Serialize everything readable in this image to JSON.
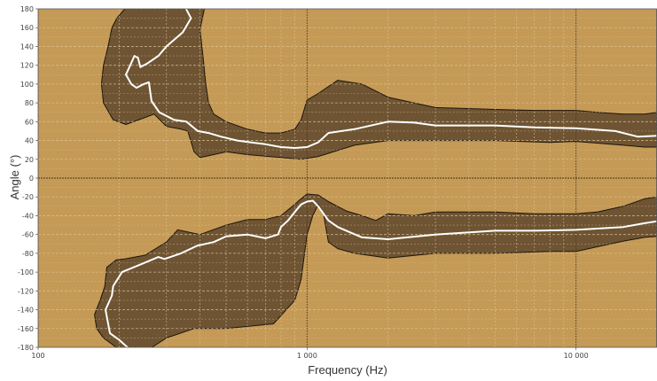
{
  "chart_data": {
    "type": "area",
    "title": "",
    "xlabel": "Frequency (Hz)",
    "ylabel": "Angle (°)",
    "xscale": "log",
    "xlim": [
      100,
      20000
    ],
    "ylim": [
      -180,
      180
    ],
    "grid": true,
    "x_ticks": [
      100,
      1000,
      10000
    ],
    "x_tick_labels": [
      "100",
      "1 000",
      "10 000"
    ],
    "y_ticks": [
      -180,
      -160,
      -140,
      -120,
      -100,
      -80,
      -60,
      -40,
      -20,
      0,
      20,
      40,
      60,
      80,
      100,
      120,
      140,
      160,
      180
    ],
    "y_tick_labels": [
      "-180",
      "-160",
      "-140",
      "-120",
      "-100",
      "-80",
      "-60",
      "-40",
      "-20",
      "0",
      "20",
      "40",
      "60",
      "80",
      "100",
      "120",
      "140",
      "160",
      "180"
    ],
    "colors": {
      "background": "#c49a56",
      "outer_band": "#6e5433",
      "inner_line": "#ffffff",
      "outline": "#1e160c",
      "grid": "#e0c596"
    },
    "upper_region": {
      "band_outer": [
        [
          210,
          180
        ],
        [
          196,
          170
        ],
        [
          188,
          160
        ],
        [
          182,
          140
        ],
        [
          175,
          120
        ],
        [
          172,
          100
        ],
        [
          175,
          80
        ],
        [
          190,
          62
        ],
        [
          212,
          57
        ],
        [
          247,
          64
        ],
        [
          270,
          68
        ],
        [
          300,
          55
        ],
        [
          340,
          52
        ],
        [
          360,
          50
        ],
        [
          380,
          28
        ],
        [
          400,
          22
        ],
        [
          450,
          25
        ],
        [
          500,
          28
        ],
        [
          600,
          25
        ],
        [
          800,
          22
        ],
        [
          950,
          20
        ],
        [
          1100,
          23
        ],
        [
          1500,
          35
        ],
        [
          2000,
          40
        ],
        [
          3000,
          40
        ],
        [
          5000,
          40
        ],
        [
          8000,
          38
        ],
        [
          10000,
          39
        ],
        [
          15000,
          35
        ],
        [
          18000,
          33
        ],
        [
          20000,
          33
        ]
      ],
      "band_inner": [
        [
          20000,
          70
        ],
        [
          18000,
          68
        ],
        [
          15000,
          68
        ],
        [
          12000,
          70
        ],
        [
          10000,
          72
        ],
        [
          7000,
          72
        ],
        [
          5000,
          73
        ],
        [
          3000,
          75
        ],
        [
          2000,
          86
        ],
        [
          1600,
          100
        ],
        [
          1300,
          104
        ],
        [
          1100,
          90
        ],
        [
          1000,
          83
        ],
        [
          950,
          62
        ],
        [
          900,
          52
        ],
        [
          800,
          48
        ],
        [
          700,
          48
        ],
        [
          600,
          52
        ],
        [
          500,
          60
        ],
        [
          450,
          68
        ],
        [
          430,
          80
        ],
        [
          420,
          100
        ],
        [
          410,
          130
        ],
        [
          400,
          158
        ],
        [
          415,
          180
        ]
      ],
      "center_line": [
        [
          355,
          180
        ],
        [
          370,
          170
        ],
        [
          345,
          155
        ],
        [
          300,
          140
        ],
        [
          280,
          130
        ],
        [
          255,
          122
        ],
        [
          240,
          118
        ],
        [
          235,
          128
        ],
        [
          228,
          130
        ],
        [
          220,
          120
        ],
        [
          212,
          110
        ],
        [
          222,
          100
        ],
        [
          232,
          96
        ],
        [
          247,
          100
        ],
        [
          258,
          102
        ],
        [
          264,
          82
        ],
        [
          282,
          70
        ],
        [
          320,
          62
        ],
        [
          356,
          60
        ],
        [
          392,
          50
        ],
        [
          430,
          48
        ],
        [
          480,
          44
        ],
        [
          550,
          40
        ],
        [
          620,
          38
        ],
        [
          700,
          36
        ],
        [
          800,
          33
        ],
        [
          900,
          32
        ],
        [
          1000,
          33
        ],
        [
          1100,
          38
        ],
        [
          1200,
          48
        ],
        [
          1500,
          52
        ],
        [
          2000,
          60
        ],
        [
          2500,
          59
        ],
        [
          3000,
          56
        ],
        [
          5000,
          56
        ],
        [
          7000,
          54
        ],
        [
          10000,
          53
        ],
        [
          14000,
          50
        ],
        [
          17000,
          44
        ],
        [
          20000,
          45
        ]
      ]
    },
    "lower_region": {
      "band_outer": [
        [
          20000,
          -20
        ],
        [
          18000,
          -22
        ],
        [
          15000,
          -30
        ],
        [
          12000,
          -36
        ],
        [
          10000,
          -38
        ],
        [
          7000,
          -38
        ],
        [
          5000,
          -36
        ],
        [
          3000,
          -36
        ],
        [
          2500,
          -40
        ],
        [
          2000,
          -38
        ],
        [
          1800,
          -45
        ],
        [
          1600,
          -40
        ],
        [
          1400,
          -35
        ],
        [
          1200,
          -25
        ],
        [
          1100,
          -18
        ],
        [
          1000,
          -17
        ],
        [
          950,
          -22
        ],
        [
          900,
          -28
        ],
        [
          800,
          -40
        ],
        [
          700,
          -44
        ],
        [
          600,
          -44
        ],
        [
          500,
          -50
        ],
        [
          400,
          -60
        ],
        [
          330,
          -55
        ],
        [
          300,
          -68
        ],
        [
          250,
          -82
        ],
        [
          210,
          -86
        ],
        [
          195,
          -87
        ],
        [
          180,
          -95
        ],
        [
          177,
          -115
        ],
        [
          170,
          -130
        ],
        [
          162,
          -145
        ],
        [
          165,
          -160
        ],
        [
          175,
          -170
        ],
        [
          195,
          -180
        ]
      ],
      "band_inner": [
        [
          265,
          -180
        ],
        [
          300,
          -170
        ],
        [
          380,
          -160
        ],
        [
          500,
          -160
        ],
        [
          750,
          -155
        ],
        [
          900,
          -130
        ],
        [
          950,
          -108
        ],
        [
          1000,
          -60
        ],
        [
          1050,
          -40
        ],
        [
          1100,
          -28
        ],
        [
          1150,
          -38
        ],
        [
          1200,
          -68
        ],
        [
          1300,
          -75
        ],
        [
          1500,
          -80
        ],
        [
          2000,
          -85
        ],
        [
          3000,
          -80
        ],
        [
          5000,
          -80
        ],
        [
          8000,
          -78
        ],
        [
          10000,
          -78
        ],
        [
          15000,
          -67
        ],
        [
          18000,
          -63
        ],
        [
          20000,
          -62
        ]
      ],
      "center_line": [
        [
          215,
          -180
        ],
        [
          200,
          -172
        ],
        [
          185,
          -165
        ],
        [
          178,
          -140
        ],
        [
          188,
          -125
        ],
        [
          190,
          -115
        ],
        [
          205,
          -100
        ],
        [
          240,
          -92
        ],
        [
          280,
          -84
        ],
        [
          295,
          -86
        ],
        [
          340,
          -80
        ],
        [
          390,
          -72
        ],
        [
          450,
          -68
        ],
        [
          500,
          -62
        ],
        [
          600,
          -60
        ],
        [
          700,
          -64
        ],
        [
          780,
          -60
        ],
        [
          800,
          -52
        ],
        [
          850,
          -45
        ],
        [
          900,
          -36
        ],
        [
          950,
          -28
        ],
        [
          1000,
          -25
        ],
        [
          1050,
          -24
        ],
        [
          1100,
          -30
        ],
        [
          1200,
          -45
        ],
        [
          1300,
          -52
        ],
        [
          1400,
          -56
        ],
        [
          1600,
          -63
        ],
        [
          2000,
          -65
        ],
        [
          3000,
          -60
        ],
        [
          5000,
          -56
        ],
        [
          7000,
          -56
        ],
        [
          10000,
          -55
        ],
        [
          15000,
          -52
        ],
        [
          18000,
          -48
        ],
        [
          20000,
          -46
        ]
      ]
    }
  }
}
